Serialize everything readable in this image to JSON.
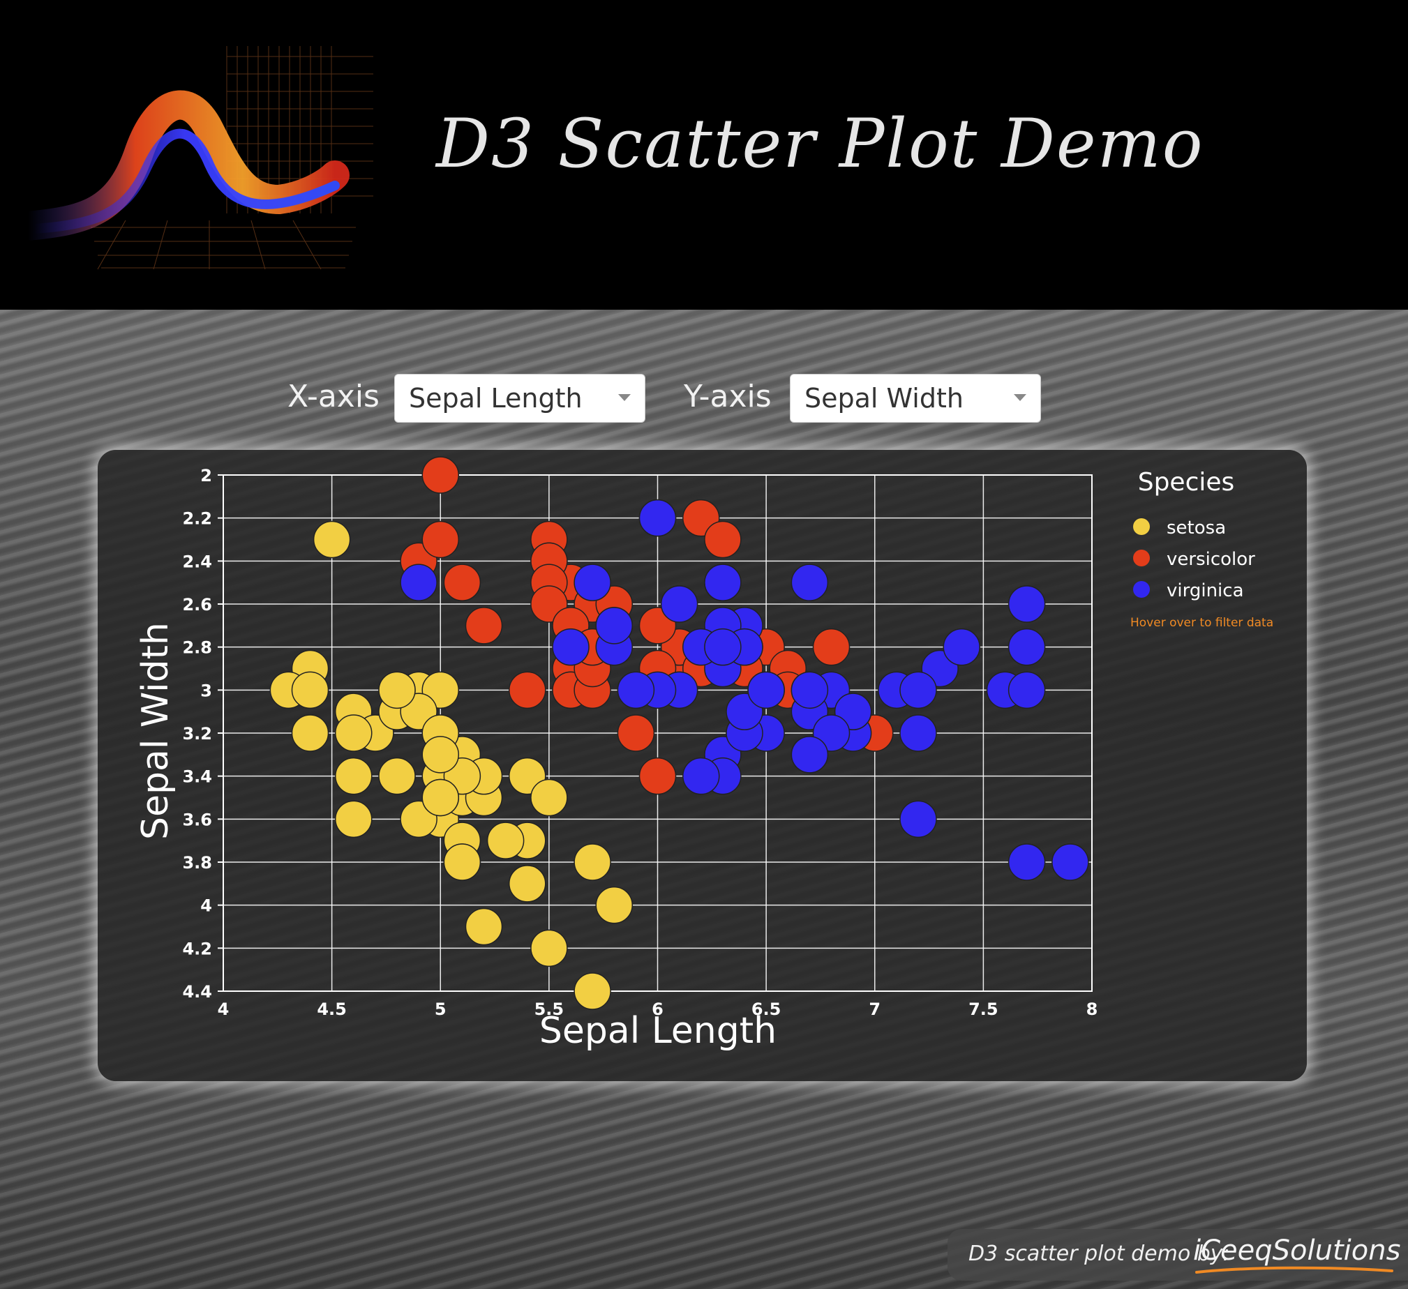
{
  "header": {
    "title": "D3 Scatter Plot Demo"
  },
  "controls": {
    "x_label": "X-axis",
    "x_value": "Sepal Length",
    "y_label": "Y-axis",
    "y_value": "Sepal Width"
  },
  "legend": {
    "title": "Species",
    "hint": "Hover over to filter data",
    "items": [
      {
        "label": "setosa",
        "color": "#f2cf43"
      },
      {
        "label": "versicolor",
        "color": "#e33d1a"
      },
      {
        "label": "virginica",
        "color": "#3227f0"
      }
    ]
  },
  "footer": {
    "credit": "D3 scatter plot demo by:",
    "brand": "iCeeqSolutions",
    "brand_accent": "#f08a24"
  },
  "chart_data": {
    "type": "scatter",
    "xlabel": "Sepal Length",
    "ylabel": "Sepal Width",
    "xlim": [
      4,
      8
    ],
    "ylim": [
      2,
      4.4
    ],
    "y_inverted": true,
    "grid": true,
    "legend_position": "top-right",
    "x_ticks": [
      "4",
      "4.5",
      "5",
      "5.5",
      "6",
      "6.5",
      "7",
      "7.5",
      "8"
    ],
    "y_ticks": [
      "2",
      "2.2",
      "2.4",
      "2.6",
      "2.8",
      "3",
      "3.2",
      "3.4",
      "3.6",
      "3.8",
      "4",
      "4.2",
      "4.4"
    ],
    "series": [
      {
        "name": "setosa",
        "color": "#f2cf43",
        "points": [
          [
            5.1,
            3.5
          ],
          [
            4.9,
            3.0
          ],
          [
            4.7,
            3.2
          ],
          [
            4.6,
            3.1
          ],
          [
            5.0,
            3.6
          ],
          [
            5.4,
            3.9
          ],
          [
            4.6,
            3.4
          ],
          [
            5.0,
            3.4
          ],
          [
            4.4,
            2.9
          ],
          [
            4.9,
            3.1
          ],
          [
            5.4,
            3.7
          ],
          [
            4.8,
            3.4
          ],
          [
            4.8,
            3.0
          ],
          [
            4.3,
            3.0
          ],
          [
            5.8,
            4.0
          ],
          [
            5.7,
            4.4
          ],
          [
            5.4,
            3.9
          ],
          [
            5.1,
            3.5
          ],
          [
            5.7,
            3.8
          ],
          [
            5.1,
            3.8
          ],
          [
            5.4,
            3.4
          ],
          [
            5.1,
            3.7
          ],
          [
            4.6,
            3.6
          ],
          [
            5.1,
            3.3
          ],
          [
            4.8,
            3.4
          ],
          [
            5.0,
            3.0
          ],
          [
            5.0,
            3.4
          ],
          [
            5.2,
            3.5
          ],
          [
            5.2,
            3.4
          ],
          [
            4.7,
            3.2
          ],
          [
            4.8,
            3.1
          ],
          [
            5.4,
            3.4
          ],
          [
            5.2,
            4.1
          ],
          [
            5.5,
            4.2
          ],
          [
            4.9,
            3.1
          ],
          [
            5.0,
            3.2
          ],
          [
            5.5,
            3.5
          ],
          [
            4.9,
            3.6
          ],
          [
            4.4,
            3.0
          ],
          [
            5.1,
            3.4
          ],
          [
            5.0,
            3.5
          ],
          [
            4.5,
            2.3
          ],
          [
            4.4,
            3.2
          ],
          [
            5.0,
            3.5
          ],
          [
            5.1,
            3.8
          ],
          [
            4.8,
            3.0
          ],
          [
            5.1,
            3.8
          ],
          [
            4.6,
            3.2
          ],
          [
            5.3,
            3.7
          ],
          [
            5.0,
            3.3
          ]
        ]
      },
      {
        "name": "versicolor",
        "color": "#e33d1a",
        "points": [
          [
            7.0,
            3.2
          ],
          [
            6.4,
            3.2
          ],
          [
            6.9,
            3.1
          ],
          [
            5.5,
            2.3
          ],
          [
            6.5,
            2.8
          ],
          [
            5.7,
            2.8
          ],
          [
            6.3,
            3.3
          ],
          [
            4.9,
            2.4
          ],
          [
            6.6,
            2.9
          ],
          [
            5.2,
            2.7
          ],
          [
            5.0,
            2.0
          ],
          [
            5.9,
            3.0
          ],
          [
            6.0,
            2.2
          ],
          [
            6.1,
            2.9
          ],
          [
            5.6,
            2.9
          ],
          [
            6.7,
            3.1
          ],
          [
            5.6,
            3.0
          ],
          [
            5.8,
            2.7
          ],
          [
            6.2,
            2.2
          ],
          [
            5.6,
            2.5
          ],
          [
            5.9,
            3.2
          ],
          [
            6.1,
            2.8
          ],
          [
            6.3,
            2.5
          ],
          [
            6.1,
            2.8
          ],
          [
            6.4,
            2.9
          ],
          [
            6.6,
            3.0
          ],
          [
            6.8,
            2.8
          ],
          [
            6.7,
            3.0
          ],
          [
            6.0,
            2.9
          ],
          [
            5.7,
            2.6
          ],
          [
            5.5,
            2.4
          ],
          [
            5.5,
            2.4
          ],
          [
            5.8,
            2.7
          ],
          [
            6.0,
            2.7
          ],
          [
            5.4,
            3.0
          ],
          [
            6.0,
            3.4
          ],
          [
            6.7,
            3.1
          ],
          [
            6.3,
            2.3
          ],
          [
            5.6,
            3.0
          ],
          [
            5.5,
            2.5
          ],
          [
            5.5,
            2.6
          ],
          [
            6.1,
            3.0
          ],
          [
            5.8,
            2.6
          ],
          [
            5.0,
            2.3
          ],
          [
            5.6,
            2.7
          ],
          [
            5.7,
            3.0
          ],
          [
            5.7,
            2.9
          ],
          [
            6.2,
            2.9
          ],
          [
            5.1,
            2.5
          ],
          [
            5.7,
            2.8
          ]
        ]
      },
      {
        "name": "virginica",
        "color": "#3227f0",
        "points": [
          [
            6.3,
            3.3
          ],
          [
            5.8,
            2.7
          ],
          [
            7.1,
            3.0
          ],
          [
            6.3,
            2.9
          ],
          [
            6.5,
            3.0
          ],
          [
            7.6,
            3.0
          ],
          [
            4.9,
            2.5
          ],
          [
            7.3,
            2.9
          ],
          [
            6.7,
            2.5
          ],
          [
            7.2,
            3.6
          ],
          [
            6.5,
            3.2
          ],
          [
            6.4,
            2.7
          ],
          [
            6.8,
            3.0
          ],
          [
            5.7,
            2.5
          ],
          [
            5.8,
            2.8
          ],
          [
            6.4,
            3.2
          ],
          [
            6.5,
            3.0
          ],
          [
            7.7,
            3.8
          ],
          [
            7.7,
            2.6
          ],
          [
            6.0,
            2.2
          ],
          [
            6.9,
            3.2
          ],
          [
            5.6,
            2.8
          ],
          [
            7.7,
            2.8
          ],
          [
            6.3,
            2.7
          ],
          [
            6.7,
            3.3
          ],
          [
            7.2,
            3.2
          ],
          [
            6.2,
            2.8
          ],
          [
            6.1,
            3.0
          ],
          [
            6.4,
            2.8
          ],
          [
            7.2,
            3.0
          ],
          [
            7.4,
            2.8
          ],
          [
            7.9,
            3.8
          ],
          [
            6.4,
            2.8
          ],
          [
            6.3,
            2.8
          ],
          [
            6.1,
            2.6
          ],
          [
            7.7,
            3.0
          ],
          [
            6.3,
            3.4
          ],
          [
            6.4,
            3.1
          ],
          [
            6.0,
            3.0
          ],
          [
            6.9,
            3.1
          ],
          [
            6.7,
            3.1
          ],
          [
            6.9,
            3.1
          ],
          [
            5.8,
            2.7
          ],
          [
            6.8,
            3.2
          ],
          [
            6.7,
            3.3
          ],
          [
            6.7,
            3.0
          ],
          [
            6.3,
            2.5
          ],
          [
            6.5,
            3.0
          ],
          [
            6.2,
            3.4
          ],
          [
            5.9,
            3.0
          ]
        ]
      }
    ]
  }
}
